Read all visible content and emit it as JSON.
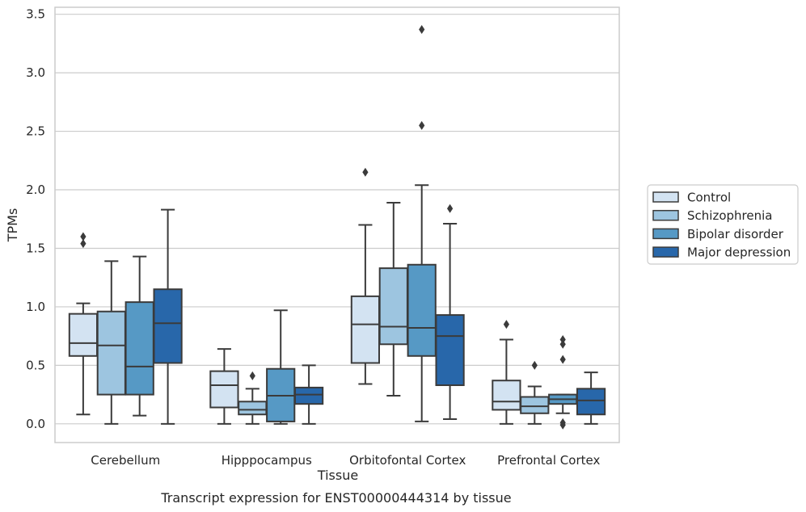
{
  "caption": "Transcript expression for ENST00000444314 by tissue",
  "chart_data": {
    "type": "box",
    "title": "",
    "xlabel": "Tissue",
    "ylabel": "TPMs",
    "ylim": [
      -0.16,
      3.56
    ],
    "yticks": [
      0.0,
      0.5,
      1.0,
      1.5,
      2.0,
      2.5,
      3.0,
      3.5
    ],
    "ytick_labels": [
      "0.0",
      "0.5",
      "1.0",
      "1.5",
      "2.0",
      "2.5",
      "3.0",
      "3.5"
    ],
    "grid": "horizontal",
    "legend_position": "right",
    "categories": [
      "Cerebellum",
      "Hipppocampus",
      "Orbitofontal Cortex",
      "Prefrontal Cortex"
    ],
    "series": [
      {
        "name": "Control",
        "color": "#d3e3f2",
        "boxes": [
          {
            "whislo": 0.08,
            "q1": 0.58,
            "med": 0.69,
            "q3": 0.94,
            "whishi": 1.03,
            "fliers": [
              1.6,
              1.54
            ]
          },
          {
            "whislo": 0.0,
            "q1": 0.14,
            "med": 0.33,
            "q3": 0.45,
            "whishi": 0.64,
            "fliers": []
          },
          {
            "whislo": 0.34,
            "q1": 0.52,
            "med": 0.85,
            "q3": 1.09,
            "whishi": 1.7,
            "fliers": [
              2.15
            ]
          },
          {
            "whislo": 0.0,
            "q1": 0.12,
            "med": 0.19,
            "q3": 0.37,
            "whishi": 0.72,
            "fliers": [
              0.85
            ]
          }
        ]
      },
      {
        "name": "Schizophrenia",
        "color": "#9dc5e0",
        "boxes": [
          {
            "whislo": 0.0,
            "q1": 0.25,
            "med": 0.67,
            "q3": 0.96,
            "whishi": 1.39,
            "fliers": []
          },
          {
            "whislo": 0.0,
            "q1": 0.08,
            "med": 0.12,
            "q3": 0.19,
            "whishi": 0.3,
            "fliers": [
              0.41
            ]
          },
          {
            "whislo": 0.24,
            "q1": 0.68,
            "med": 0.83,
            "q3": 1.33,
            "whishi": 1.89,
            "fliers": []
          },
          {
            "whislo": 0.0,
            "q1": 0.09,
            "med": 0.15,
            "q3": 0.23,
            "whishi": 0.32,
            "fliers": [
              0.5
            ]
          }
        ]
      },
      {
        "name": "Bipolar disorder",
        "color": "#5699c5",
        "boxes": [
          {
            "whislo": 0.07,
            "q1": 0.25,
            "med": 0.49,
            "q3": 1.04,
            "whishi": 1.43,
            "fliers": []
          },
          {
            "whislo": 0.0,
            "q1": 0.02,
            "med": 0.24,
            "q3": 0.47,
            "whishi": 0.97,
            "fliers": []
          },
          {
            "whislo": 0.02,
            "q1": 0.58,
            "med": 0.82,
            "q3": 1.36,
            "whishi": 2.04,
            "fliers": [
              2.55,
              3.37
            ]
          },
          {
            "whislo": 0.09,
            "q1": 0.17,
            "med": 0.21,
            "q3": 0.25,
            "whishi": 0.25,
            "fliers": [
              0.72,
              0.68,
              0.55,
              0.01,
              -0.01
            ]
          }
        ]
      },
      {
        "name": "Major depression",
        "color": "#2867aa",
        "boxes": [
          {
            "whislo": 0.0,
            "q1": 0.52,
            "med": 0.86,
            "q3": 1.15,
            "whishi": 1.83,
            "fliers": []
          },
          {
            "whislo": 0.0,
            "q1": 0.17,
            "med": 0.25,
            "q3": 0.31,
            "whishi": 0.5,
            "fliers": []
          },
          {
            "whislo": 0.04,
            "q1": 0.33,
            "med": 0.75,
            "q3": 0.93,
            "whishi": 1.71,
            "fliers": [
              1.84
            ]
          },
          {
            "whislo": 0.0,
            "q1": 0.08,
            "med": 0.2,
            "q3": 0.3,
            "whishi": 0.44,
            "fliers": []
          }
        ]
      }
    ]
  }
}
